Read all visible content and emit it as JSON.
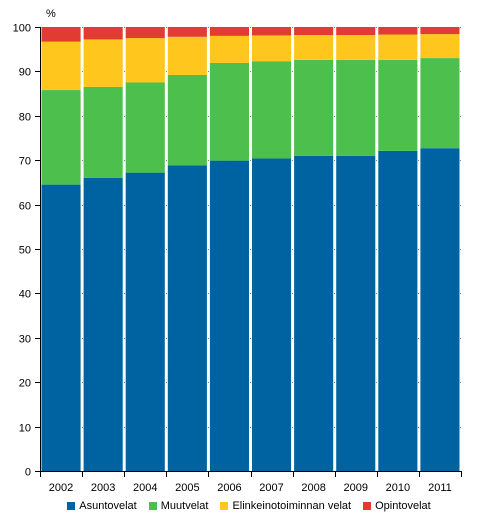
{
  "chart_data": {
    "type": "bar",
    "stacked": true,
    "ylabel": "%",
    "ylim": [
      0,
      100
    ],
    "yticks": [
      "0",
      "10",
      "20",
      "30",
      "40",
      "50",
      "60",
      "70",
      "80",
      "90",
      "100"
    ],
    "categories": [
      "2002",
      "2003",
      "2004",
      "2005",
      "2006",
      "2007",
      "2008",
      "2009",
      "2010",
      "2011"
    ],
    "series": [
      {
        "name": "Asuntovelat",
        "color": "#0063a1",
        "values": [
          64.5,
          66.0,
          67.2,
          68.8,
          69.9,
          70.4,
          71.0,
          71.0,
          72.1,
          72.7
        ]
      },
      {
        "name": "Muutvelat",
        "color": "#4cbf4c",
        "values": [
          21.3,
          20.5,
          20.3,
          20.4,
          22.0,
          21.9,
          21.6,
          21.6,
          20.5,
          20.3
        ]
      },
      {
        "name": "Elinkeinotoiminnan velat",
        "color": "#ffc61e",
        "values": [
          10.9,
          10.7,
          10.0,
          8.6,
          6.1,
          5.8,
          5.6,
          5.6,
          5.7,
          5.4
        ]
      },
      {
        "name": "Opintovelat",
        "color": "#e03c31",
        "values": [
          3.3,
          2.8,
          2.5,
          2.2,
          2.0,
          1.9,
          1.8,
          1.8,
          1.7,
          1.6
        ]
      }
    ],
    "grid": true,
    "legend_position": "bottom"
  }
}
